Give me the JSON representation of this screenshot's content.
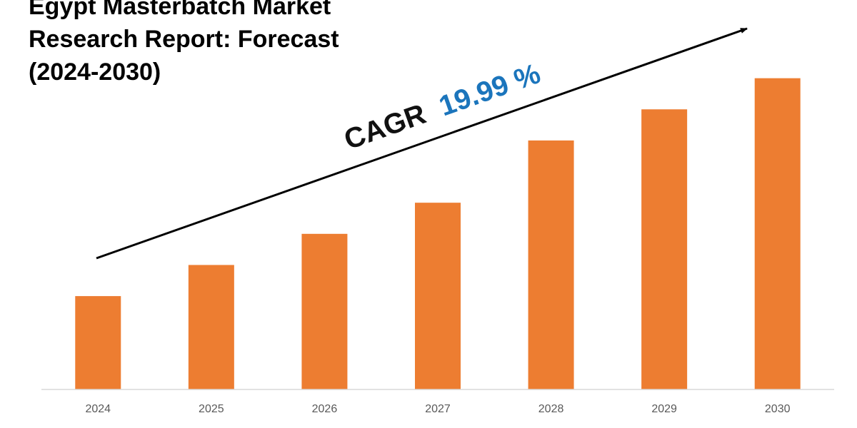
{
  "header": {
    "title_lines": [
      "Egypt Masterbatch Market",
      "Research Report: Forecast",
      "(2024-2030)"
    ]
  },
  "annotation": {
    "cagr_prefix": "CAGR",
    "cagr_value": "19.99 %",
    "prefix_color": "#111111",
    "value_color": "#1b75bc"
  },
  "colors": {
    "bar": "#ed7d31",
    "axis": "#d9d9d9",
    "arrow": "#000000"
  },
  "chart_data": {
    "type": "bar",
    "categories": [
      "2024",
      "2025",
      "2026",
      "2027",
      "2028",
      "2029",
      "2030"
    ],
    "values": [
      30,
      40,
      50,
      60,
      80,
      90,
      100
    ],
    "ylim": [
      0,
      110
    ],
    "grid": false,
    "legend": "none",
    "annotations": [
      "CAGR 19.99 %"
    ]
  }
}
